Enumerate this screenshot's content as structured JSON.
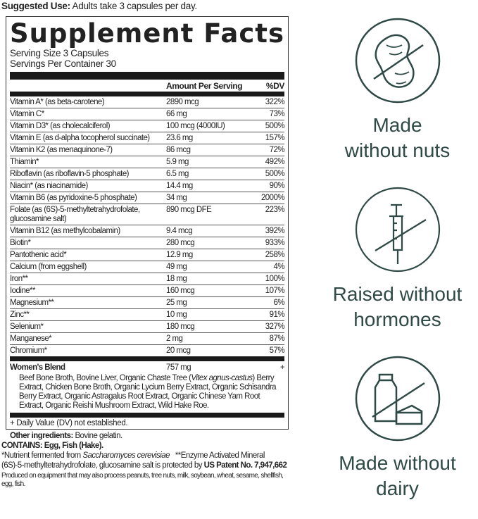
{
  "suggested_use": {
    "label": "Suggested Use:",
    "text": "Adults take 3 capsules per day."
  },
  "facts": {
    "title": "Supplement Facts",
    "serving_size": "Serving Size 3 Capsules",
    "servings_per_container": "Servings Per Container 30",
    "headers": {
      "amount": "Amount Per Serving",
      "dv": "%DV"
    },
    "rows": [
      {
        "name": "Vitamin A* (as beta-carotene)",
        "amount": "2890 mcg",
        "dv": "322%"
      },
      {
        "name": "Vitamin C*",
        "amount": "66 mg",
        "dv": "73%"
      },
      {
        "name": "Vitamin D3* (as cholecalciferol)",
        "amount": "100 mcg (4000IU)",
        "dv": "500%"
      },
      {
        "name": "Vitamin E (as d-alpha tocopherol succinate)",
        "amount": "23.6 mg",
        "dv": "157%"
      },
      {
        "name": "Vitamin K2 (as menaquinone-7)",
        "amount": "86 mcg",
        "dv": "72%"
      },
      {
        "name": "Thiamin*",
        "amount": "5.9 mg",
        "dv": "492%"
      },
      {
        "name": "Riboflavin (as riboflavin-5 phosphate)",
        "amount": "6.5 mg",
        "dv": "500%"
      },
      {
        "name": "Niacin* (as niacinamide)",
        "amount": "14.4 mg",
        "dv": "90%"
      },
      {
        "name": "Vitamin B6 (as pyridoxine-5 phosphate)",
        "amount": "34 mg",
        "dv": "2000%"
      },
      {
        "name": "Folate (as (6S)-5-methyltetrahydrofolate, glucosamine salt)",
        "amount": "890 mcg DFE",
        "dv": "223%"
      },
      {
        "name": "Vitamin B12 (as methylcobalamin)",
        "amount": "9.4 mcg",
        "dv": "392%"
      },
      {
        "name": "Biotin*",
        "amount": "280 mcg",
        "dv": "933%"
      },
      {
        "name": "Pantothenic acid*",
        "amount": "12.9 mg",
        "dv": "258%"
      },
      {
        "name": "Calcium (from eggshell)",
        "amount": "49 mg",
        "dv": "4%"
      },
      {
        "name": "Iron**",
        "amount": "18 mg",
        "dv": "100%"
      },
      {
        "name": "Iodine**",
        "amount": "160 mcg",
        "dv": "107%"
      },
      {
        "name": "Magnesium**",
        "amount": "25 mg",
        "dv": "6%"
      },
      {
        "name": "Zinc**",
        "amount": "10 mg",
        "dv": "91%"
      },
      {
        "name": "Selenium*",
        "amount": "180 mcg",
        "dv": "327%"
      },
      {
        "name": "Manganese*",
        "amount": "2 mg",
        "dv": "87%"
      },
      {
        "name": "Chromium*",
        "amount": "20 mcg",
        "dv": "57%"
      }
    ],
    "blend": {
      "name": "Women's Blend",
      "amount": "757 mg",
      "dv": "+",
      "ingredients_a": "Beef Bone Broth, Bovine Liver, Organic Chaste Tree (",
      "ingredients_italic": "Vitex agnus-castus",
      "ingredients_b": ") Berry Extract, Chicken Bone Broth, Organic Lycium Berry Extract, Organic Schisandra Berry Extract, Organic Astragalus Root Extract, Organic Chinese Yam Root Extract, Organic Reishi Mushroom Extract, Wild Hake Roe."
    },
    "dv_note": "+ Daily Value (DV) not established."
  },
  "other_ingredients": {
    "label": "Other ingredients:",
    "text": "Bovine gelatin."
  },
  "contains": "CONTAINS: Egg, Fish (Hake).",
  "footnote": {
    "a": "*Nutrient fermented from ",
    "a_italic": "Saccharomyces cerevisiae",
    "b": "**Enzyme Activated Mineral",
    "c": "(6S)-5-methyltetrahydrofolate, glucosamine salt is protected by ",
    "patent": "US Patent No. 7,947,662"
  },
  "produced": "Produced on equipment that may also process peanuts, tree nuts, milk, soybean, wheat, sesame, shellfish, egg, fish.",
  "badges": [
    {
      "icon": "no-nuts-icon",
      "line1": "Made",
      "line2": "without nuts"
    },
    {
      "icon": "no-hormones-syringe-icon",
      "line1": "Raised without",
      "line2": "hormones"
    },
    {
      "icon": "no-dairy-icon",
      "line1": "Made without",
      "line2": "dairy"
    }
  ],
  "colors": {
    "badge": "#2f4a46",
    "label": "#1a1a1a"
  }
}
